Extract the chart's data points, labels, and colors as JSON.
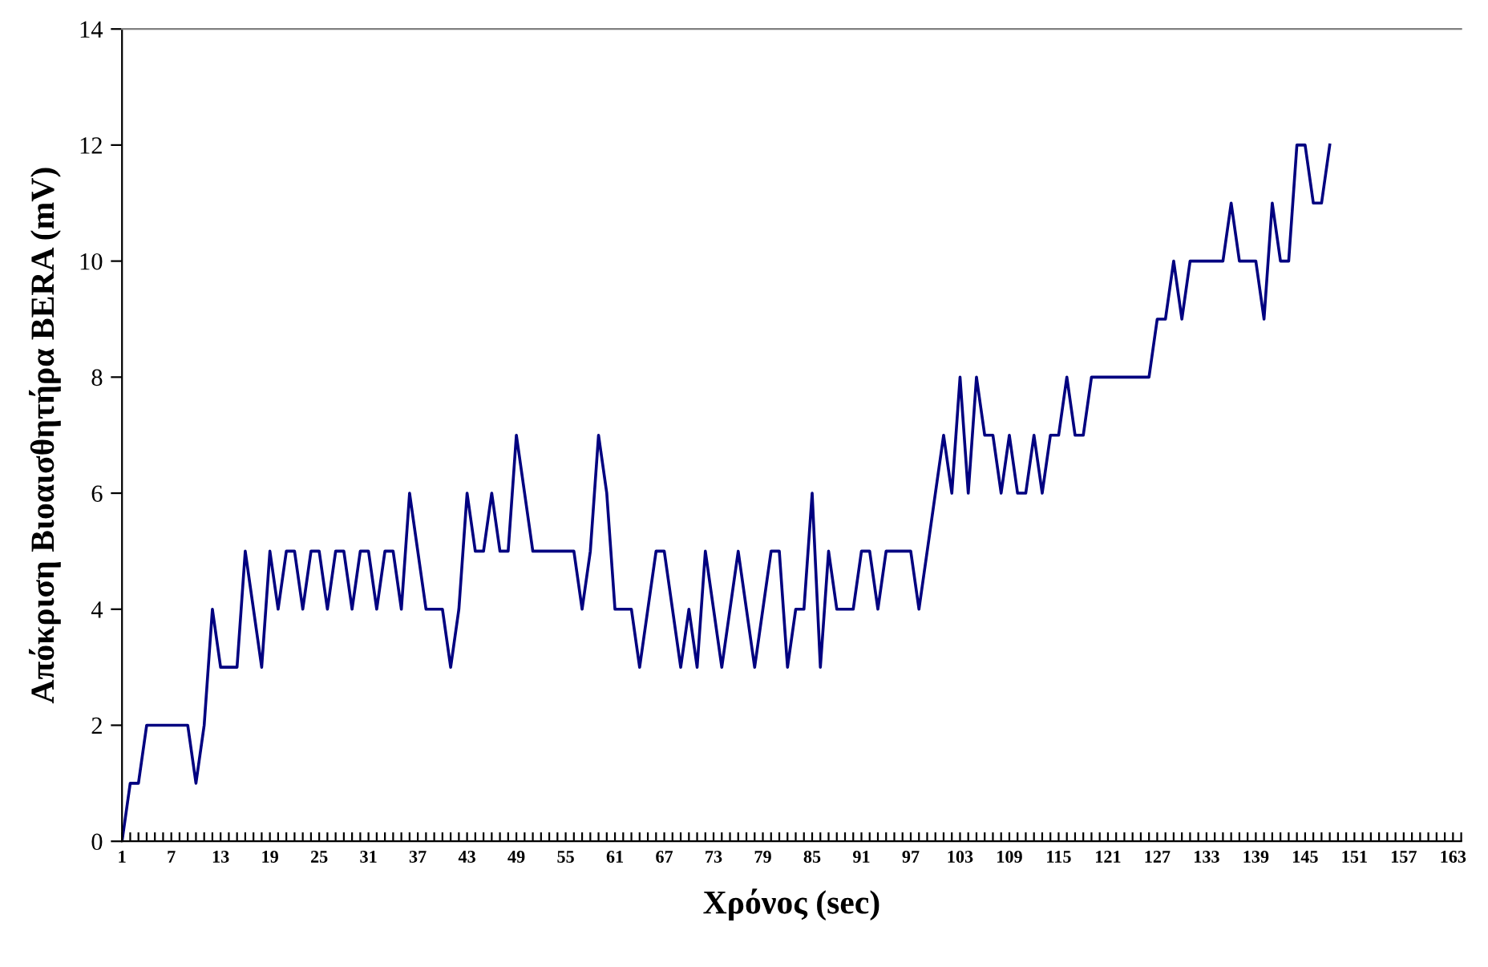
{
  "chart_data": {
    "type": "line",
    "xlabel": "Χρόνος (sec)",
    "ylabel": "Απόκριση Βιοαισθητήρα BERA (mV)",
    "categories": [
      "1",
      null,
      null,
      null,
      null,
      null,
      "7",
      null,
      null,
      null,
      null,
      null,
      "13",
      null,
      null,
      null,
      null,
      null,
      "19",
      null,
      null,
      null,
      null,
      null,
      "25",
      null,
      null,
      null,
      null,
      null,
      "31",
      null,
      null,
      null,
      null,
      null,
      "37",
      null,
      null,
      null,
      null,
      null,
      "43",
      null,
      null,
      null,
      null,
      null,
      "49",
      null,
      null,
      null,
      null,
      null,
      "55",
      null,
      null,
      null,
      null,
      null,
      "61",
      null,
      null,
      null,
      null,
      null,
      "67",
      null,
      null,
      null,
      null,
      null,
      "73",
      null,
      null,
      null,
      null,
      null,
      "79",
      null,
      null,
      null,
      null,
      null,
      "85",
      null,
      null,
      null,
      null,
      null,
      "91",
      null,
      null,
      null,
      null,
      null,
      "97",
      null,
      null,
      null,
      null,
      null,
      "103",
      null,
      null,
      null,
      null,
      null,
      "109",
      null,
      null,
      null,
      null,
      null,
      "115",
      null,
      null,
      null,
      null,
      null,
      "121",
      null,
      null,
      null,
      null,
      null,
      "127",
      null,
      null,
      null,
      null,
      null,
      "133",
      null,
      null,
      null,
      null,
      null,
      "139",
      null,
      null,
      null,
      null,
      null,
      "145",
      null,
      null,
      null,
      null,
      null,
      "151",
      null,
      null,
      null,
      null,
      null,
      "157",
      null,
      null,
      null,
      null,
      null,
      "163",
      null
    ],
    "series": [
      {
        "color": "#000080",
        "values": [
          0,
          1,
          1,
          2,
          2,
          2,
          2,
          2,
          2,
          1,
          2,
          4,
          3,
          3,
          3,
          5,
          4,
          3,
          5,
          4,
          5,
          5,
          4,
          5,
          5,
          4,
          5,
          5,
          4,
          5,
          5,
          4,
          5,
          5,
          4,
          6,
          5,
          4,
          4,
          4,
          3,
          4,
          6,
          5,
          5,
          6,
          5,
          5,
          7,
          6,
          5,
          5,
          5,
          5,
          5,
          5,
          4,
          5,
          7,
          6,
          4,
          4,
          4,
          3,
          4,
          5,
          5,
          4,
          3,
          4,
          3,
          5,
          4,
          3,
          4,
          5,
          4,
          3,
          4,
          5,
          5,
          3,
          4,
          4,
          6,
          3,
          5,
          4,
          4,
          4,
          5,
          5,
          4,
          5,
          5,
          5,
          5,
          4,
          5,
          6,
          7,
          6,
          8,
          6,
          8,
          7,
          7,
          6,
          7,
          6,
          6,
          7,
          6,
          7,
          7,
          8,
          7,
          7,
          8,
          8,
          8,
          8,
          8,
          8,
          8,
          8,
          9,
          9,
          10,
          9,
          10,
          10,
          10,
          10,
          10,
          11,
          10,
          10,
          10,
          9,
          11,
          10,
          10,
          12,
          12,
          11,
          11,
          12,
          null,
          null,
          null,
          null,
          null,
          null,
          null,
          null,
          null,
          null,
          null,
          null,
          null,
          null,
          null,
          null
        ]
      }
    ],
    "ylim": [
      0,
      14
    ],
    "yticks": [
      0,
      2,
      4,
      6,
      8,
      10,
      12,
      14
    ],
    "grid": false,
    "legend": false,
    "marker": "none",
    "line_style": "solid"
  }
}
